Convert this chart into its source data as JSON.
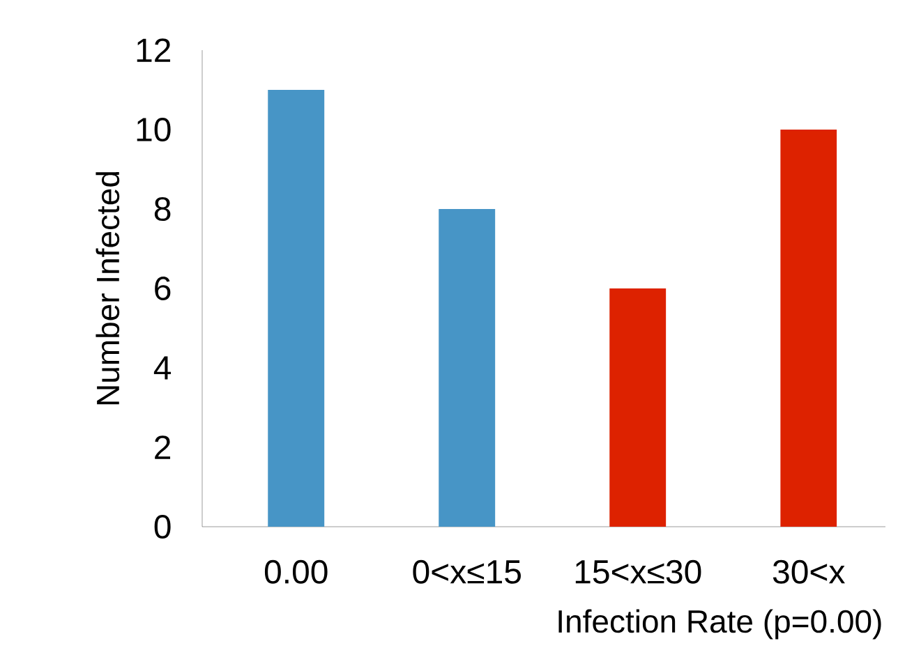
{
  "chart_data": {
    "type": "bar",
    "xlabel": "Infection Rate (p=0.00)",
    "ylabel": "Number Infected",
    "categories": [
      "0.00",
      "0<x≤15",
      "15<x≤30",
      "30<x"
    ],
    "values": [
      11,
      8,
      6,
      10
    ],
    "colors": [
      "#4795c6",
      "#4795c6",
      "#dd2200",
      "#dd2200"
    ],
    "ylim": [
      0,
      12
    ],
    "yticks": [
      0,
      2,
      4,
      6,
      8,
      10,
      12
    ]
  }
}
